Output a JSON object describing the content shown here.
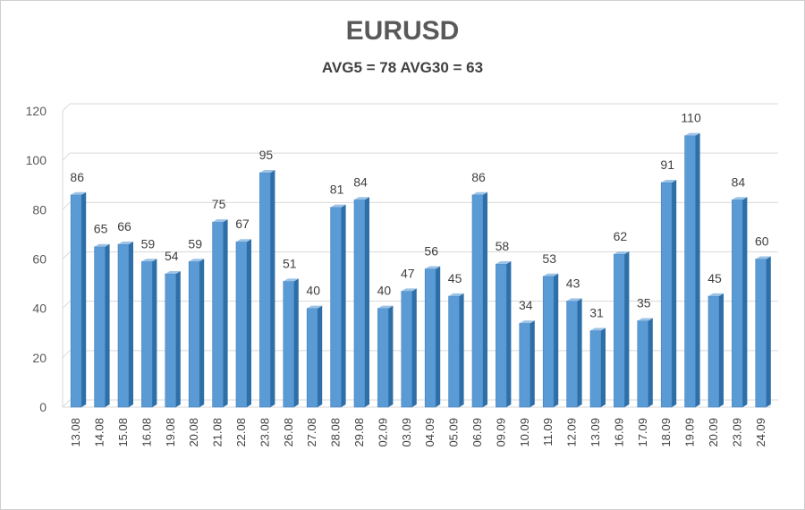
{
  "chart_data": {
    "type": "bar",
    "title": "EURUSD",
    "subtitle": "AVG5 = 78 AVG30 = 63",
    "xlabel": "",
    "ylabel": "",
    "ylim": [
      0,
      120
    ],
    "yticks": [
      0,
      20,
      40,
      60,
      80,
      100,
      120
    ],
    "grid": true,
    "categories": [
      "13.08",
      "14.08",
      "15.08",
      "16.08",
      "19.08",
      "20.08",
      "21.08",
      "22.08",
      "23.08",
      "26.08",
      "27.08",
      "28.08",
      "29.08",
      "02.09",
      "03.09",
      "04.09",
      "05.09",
      "06.09",
      "09.09",
      "10.09",
      "11.09",
      "12.09",
      "13.09",
      "16.09",
      "17.09",
      "18.09",
      "19.09",
      "20.09",
      "23.09",
      "24.09"
    ],
    "values": [
      86,
      65,
      66,
      59,
      54,
      59,
      75,
      67,
      95,
      51,
      40,
      81,
      84,
      40,
      47,
      56,
      45,
      86,
      58,
      34,
      53,
      43,
      31,
      62,
      35,
      91,
      110,
      45,
      84,
      60
    ],
    "colors": {
      "bar_front": "#5b9bd5",
      "bar_side": "#2e6fa8",
      "bar_top": "#9cc3e6",
      "grid": "#d9d9d9"
    }
  }
}
